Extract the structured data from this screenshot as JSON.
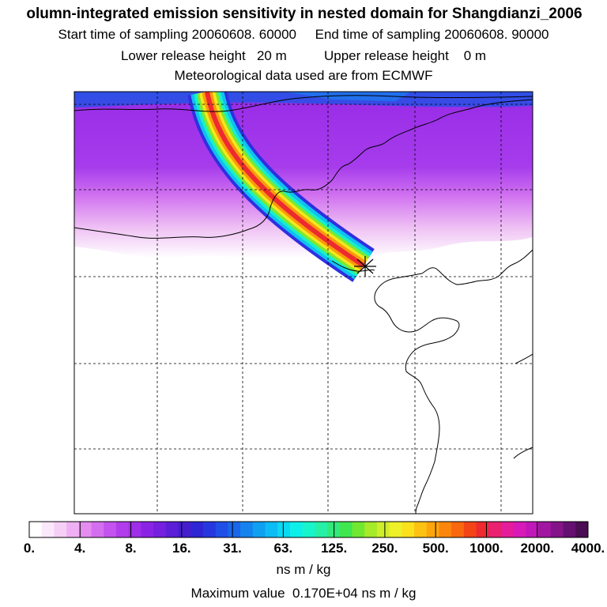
{
  "header": {
    "title": "olumn-integrated emission sensitivity in nested domain for Shangdianzi_2006",
    "start_label": "Start time of sampling",
    "start_value": "20060608. 60000",
    "end_label": "End time of sampling",
    "end_value": "20060608. 90000",
    "lower_label": "Lower release height",
    "lower_value": "20 m",
    "upper_label": "Upper release height",
    "upper_value": "0 m",
    "met_line": "Meteorological data used are from ECMWF"
  },
  "map": {
    "release_marker": "release-point-star",
    "plume": "emission sensitivity plume"
  },
  "colorbar": {
    "tick_labels": [
      "0.",
      "4.",
      "8.",
      "16.",
      "31.",
      "63.",
      "125.",
      "250.",
      "500.",
      "1000.",
      "2000.",
      "4000."
    ],
    "colors": [
      "#ffffff",
      "#fbe8fb",
      "#f6cff7",
      "#efb0f3",
      "#e48cf0",
      "#d46ef0",
      "#c352ee",
      "#b13cec",
      "#9e2ee8",
      "#8a24e4",
      "#7420de",
      "#5c1ed6",
      "#441ecc",
      "#2e25d4",
      "#2637e0",
      "#1f4fe6",
      "#1a67ea",
      "#1483ee",
      "#10a0f2",
      "#0dbcf4",
      "#0cd8f2",
      "#0df0ea",
      "#18f4cc",
      "#26f0a6",
      "#32ea7c",
      "#40e650",
      "#70e830",
      "#a6ea2a",
      "#cfee2a",
      "#eef02a",
      "#fbe01c",
      "#fcc212",
      "#fca50d",
      "#fb860c",
      "#f9670f",
      "#f24416",
      "#ec2a30",
      "#ea2070",
      "#e61d9a",
      "#d81ab8",
      "#c018b8",
      "#a016a0",
      "#841488",
      "#641070",
      "#4a0c52"
    ],
    "unit": "ns m / kg",
    "max_label": "Maximum value",
    "max_value": "0.170E+04 ns m / kg"
  }
}
